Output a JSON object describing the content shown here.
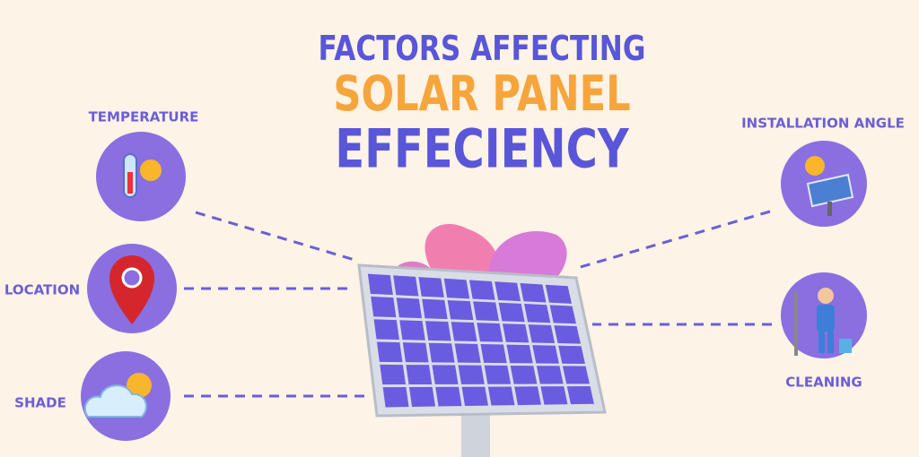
{
  "title": {
    "line1": "FACTORS AFFECTING",
    "line2": "SOLAR PANEL",
    "line3": "EFFECIENCY"
  },
  "factors": [
    {
      "label": "TEMPERATURE"
    },
    {
      "label": "LOCATION"
    },
    {
      "label": "SHADE"
    },
    {
      "label": "INSTALLATION ANGLE"
    },
    {
      "label": "CLEANING"
    }
  ]
}
